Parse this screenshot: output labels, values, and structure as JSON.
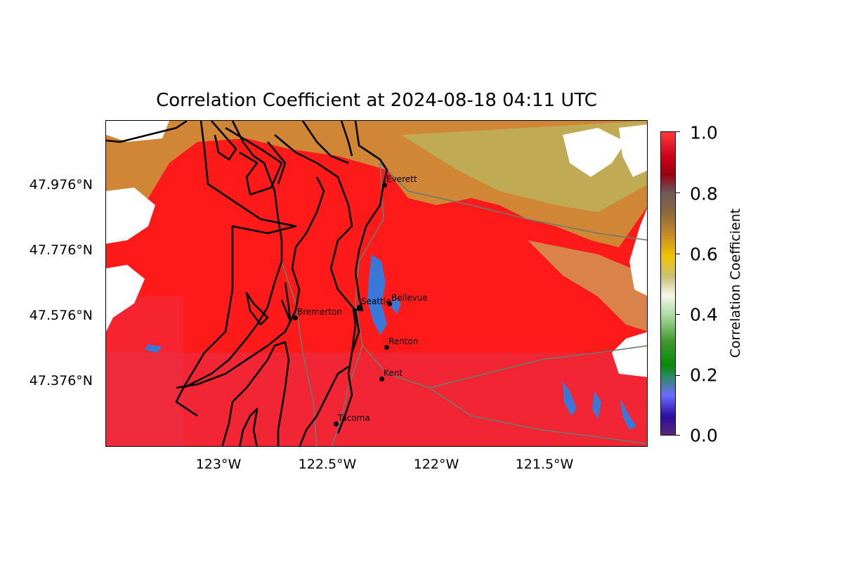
{
  "title": "Correlation Coefficient at 2024-08-18 04:11 UTC",
  "lat_labels": [
    "47.976°N",
    "47.776°N",
    "47.576°N",
    "47.376°N"
  ],
  "lon_labels": [
    "123°W",
    "122.5°W",
    "122°W",
    "121.5°W"
  ],
  "colorbar": {
    "title": "Correlation Coefficient",
    "ticks": [
      "1.0",
      "0.8",
      "0.6",
      "0.4",
      "0.2",
      "0.0"
    ]
  },
  "cities": [
    {
      "name": "Everett"
    },
    {
      "name": "Seattle"
    },
    {
      "name": "Bellevue"
    },
    {
      "name": "Bremerton"
    },
    {
      "name": "Renton"
    },
    {
      "name": "Kent"
    },
    {
      "name": "Tacoma"
    }
  ],
  "colors": {
    "high_cc": "#ff1a1a",
    "water": "#3a78d8",
    "coastline": "#000000",
    "county_lines": "#6f7a6f"
  }
}
